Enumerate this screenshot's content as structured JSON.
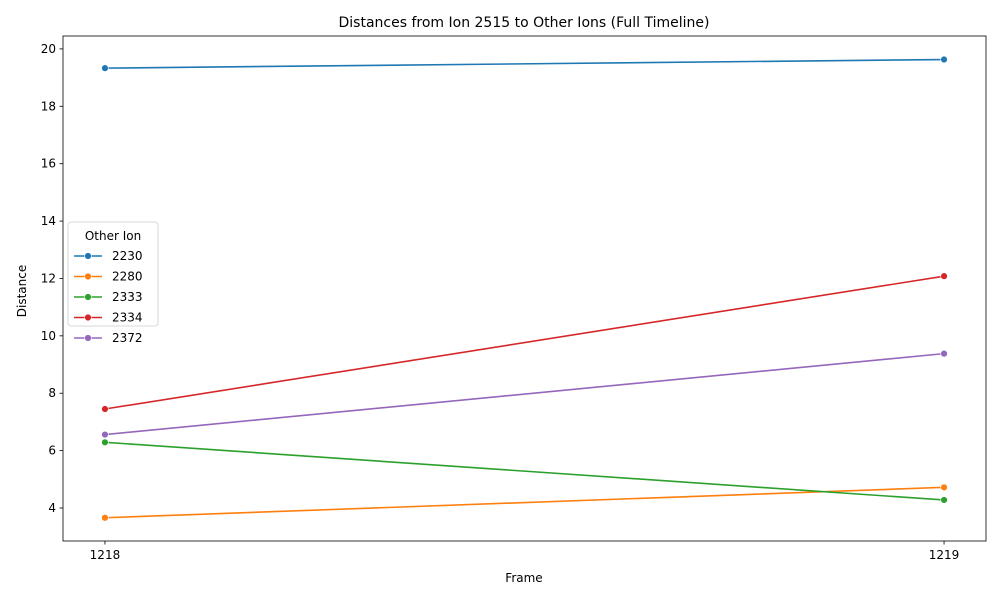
{
  "chart_data": {
    "type": "line",
    "title": "Distances from Ion 2515 to Other Ions (Full Timeline)",
    "xlabel": "Frame",
    "ylabel": "Distance",
    "x": [
      1218,
      1219
    ],
    "x_tick_labels": [
      "1218",
      "1219"
    ],
    "xlim": [
      1217.95,
      1219.05
    ],
    "ylim": [
      2.85,
      20.45
    ],
    "y_ticks": [
      4,
      6,
      8,
      10,
      12,
      14,
      16,
      18,
      20
    ],
    "grid": false,
    "legend": {
      "title": "Other Ion",
      "placement": "center-left"
    },
    "series": [
      {
        "name": "2230",
        "color": "#1f77b4",
        "values": [
          19.33,
          19.63
        ]
      },
      {
        "name": "2280",
        "color": "#ff7f0e",
        "values": [
          3.66,
          4.72
        ]
      },
      {
        "name": "2333",
        "color": "#2ca02c",
        "values": [
          6.29,
          4.28
        ]
      },
      {
        "name": "2334",
        "color": "#d62728",
        "values": [
          7.45,
          12.08
        ]
      },
      {
        "name": "2372",
        "color": "#9467bd",
        "values": [
          6.56,
          9.38
        ]
      }
    ]
  }
}
